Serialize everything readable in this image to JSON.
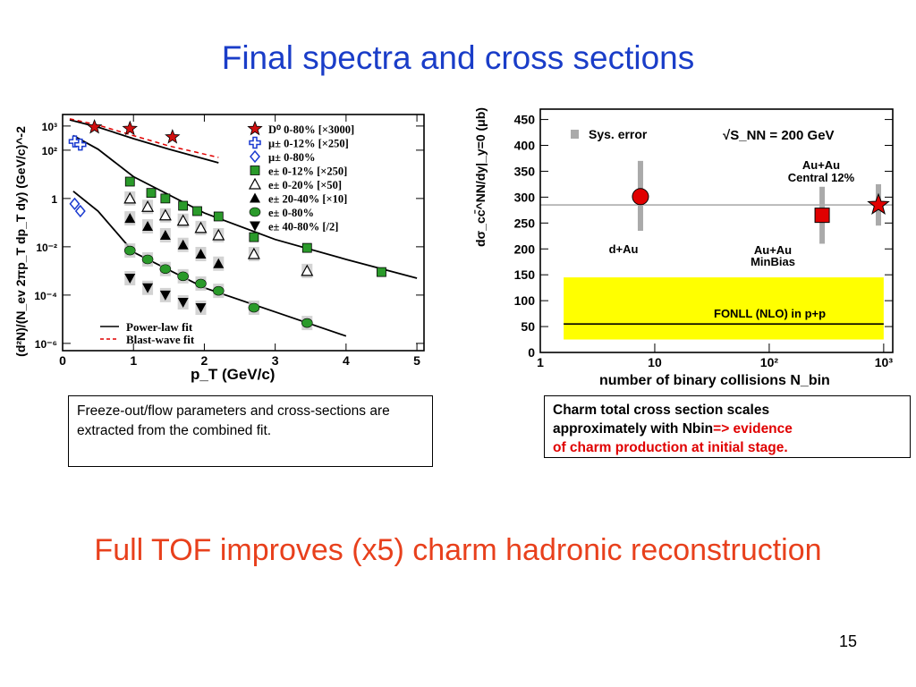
{
  "slide": {
    "title": "Final spectra and cross sections",
    "bottom_statement": "Full TOF improves (x5) charm hadronic reconstruction",
    "page_number": "15"
  },
  "left_caption": {
    "text": "Freeze-out/flow parameters and cross-sections are extracted from the combined fit."
  },
  "right_caption": {
    "line1": "Charm total cross section scales",
    "line2_black": "approximately with Nbin",
    "line2_red": "=> evidence",
    "line3_red": "of  charm production at initial stage."
  },
  "colors": {
    "title": "#1a3dc8",
    "bottom_statement": "#e8401c",
    "caption_red": "#e00000",
    "fonll_band": "#ffff00"
  },
  "chart_data": [
    {
      "type": "scatter",
      "y_scale": "log",
      "xlabel": "p_T (GeV/c)",
      "ylabel": "(d²N)/(N_ev 2πp_T dp_T dy) (GeV/c)^-2",
      "x_ticks": [
        "0",
        "1",
        "2",
        "3",
        "4",
        "5"
      ],
      "y_ticks": [
        "10³",
        "10²",
        "1",
        "10⁻²",
        "10⁻⁴",
        "10⁻⁶"
      ],
      "xlim": [
        0,
        5.1
      ],
      "ylim": [
        5e-07,
        3000
      ],
      "legend_position": "top-right",
      "legend": [
        {
          "label": "D⁰ 0-80% [×3000]",
          "marker": "star",
          "color": "#d01010"
        },
        {
          "label": "μ± 0-12% [×250]",
          "marker": "cross",
          "color": "#1a3ad0"
        },
        {
          "label": "μ± 0-80%",
          "marker": "diamond",
          "color": "#1a3ad0"
        },
        {
          "label": "e± 0-12% [×250]",
          "marker": "square",
          "color": "#2a9a2a"
        },
        {
          "label": "e± 0-20% [×50]",
          "marker": "triangle-open",
          "color": "#000000"
        },
        {
          "label": "e± 20-40% [×10]",
          "marker": "triangle",
          "color": "#000000"
        },
        {
          "label": "e± 0-80%",
          "marker": "circle",
          "color": "#2a9a2a"
        },
        {
          "label": "e± 40-80% [/2]",
          "marker": "triangle-down",
          "color": "#000000"
        }
      ],
      "fit_legend": [
        {
          "label": "Power-law fit",
          "style": "solid"
        },
        {
          "label": "Blast-wave fit",
          "style": "dashed",
          "color": "#e00000"
        }
      ],
      "series": [
        {
          "name": "D⁰ 0-80% [×3000]",
          "x": [
            0.45,
            0.95,
            1.55
          ],
          "y": [
            900,
            780,
            350
          ]
        },
        {
          "name": "μ± 0-12% [×250]",
          "x": [
            0.17,
            0.25
          ],
          "y": [
            230,
            170
          ]
        },
        {
          "name": "μ± 0-80%",
          "x": [
            0.17,
            0.25
          ],
          "y": [
            0.6,
            0.3
          ]
        },
        {
          "name": "e± 0-12% [×250]",
          "x": [
            0.95,
            1.25,
            1.45,
            1.7,
            1.9,
            2.2,
            2.7,
            3.45,
            4.5
          ],
          "y": [
            5,
            1.7,
            1.0,
            0.5,
            0.3,
            0.18,
            0.025,
            0.009,
            0.0009
          ]
        },
        {
          "name": "e± 0-20% [×50]",
          "x": [
            0.95,
            1.2,
            1.45,
            1.7,
            1.95,
            2.2,
            2.7,
            3.45
          ],
          "y": [
            1.0,
            0.45,
            0.2,
            0.12,
            0.06,
            0.03,
            0.005,
            0.001
          ]
        },
        {
          "name": "e± 20-40% [×10]",
          "x": [
            0.95,
            1.2,
            1.45,
            1.7,
            1.95,
            2.2
          ],
          "y": [
            0.15,
            0.07,
            0.03,
            0.012,
            0.005,
            0.002
          ]
        },
        {
          "name": "e± 0-80%",
          "x": [
            0.95,
            1.2,
            1.45,
            1.7,
            1.95,
            2.2,
            2.7,
            3.45
          ],
          "y": [
            0.007,
            0.003,
            0.0012,
            0.0006,
            0.0003,
            0.00015,
            3e-05,
            7e-06
          ]
        },
        {
          "name": "e± 40-80% [/2]",
          "x": [
            0.95,
            1.2,
            1.45,
            1.7,
            1.95
          ],
          "y": [
            0.0005,
            0.0002,
            0.0001,
            5e-05,
            3e-05
          ]
        }
      ],
      "fit_lines": [
        {
          "label": "Power-law fit",
          "x": [
            0.1,
            0.5,
            1.0,
            1.5,
            2.2
          ],
          "y": [
            1800,
            900,
            300,
            110,
            30
          ]
        },
        {
          "label": "Power-law fit",
          "x": [
            0.15,
            0.5,
            1.0,
            2.0,
            3.0,
            4.0,
            5.0
          ],
          "y": [
            400,
            110,
            8,
            0.25,
            0.02,
            0.003,
            0.0005
          ]
        },
        {
          "label": "Power-law fit",
          "x": [
            0.15,
            0.5,
            1.0,
            2.0,
            3.0,
            4.0
          ],
          "y": [
            2,
            0.3,
            0.006,
            0.0002,
            2e-05,
            2e-06
          ]
        },
        {
          "label": "Blast-wave fit",
          "x": [
            0.1,
            0.5,
            1.0,
            1.5,
            2.2
          ],
          "y": [
            2000,
            1100,
            400,
            150,
            50
          ]
        }
      ]
    },
    {
      "type": "scatter",
      "x_scale": "log",
      "xlabel": "number of binary collisions N_bin",
      "ylabel": "dσ_cc̄^NN/dy|_y=0 (μb)",
      "x_ticks": [
        "1",
        "10",
        "10²",
        "10³"
      ],
      "y_ticks": [
        "0",
        "50",
        "100",
        "150",
        "200",
        "250",
        "300",
        "350",
        "400",
        "450"
      ],
      "xlim": [
        1,
        1200
      ],
      "ylim": [
        0,
        470
      ],
      "annotations": [
        "Sys. error",
        "√S_NN = 200 GeV",
        "Au+Au\nCentral 12%",
        "d+Au",
        "Au+Au\nMinBias",
        "FONLL (NLO) in p+p"
      ],
      "reference_line": {
        "y": 285
      },
      "fonll_band": {
        "x": [
          1.6,
          1000
        ],
        "y_range": [
          25,
          145
        ],
        "central": 55
      },
      "series": [
        {
          "name": "d+Au",
          "marker": "circle",
          "color": "#e00000",
          "x": [
            7.5
          ],
          "y": [
            301
          ],
          "sys_error": [
            235,
            370
          ]
        },
        {
          "name": "Au+Au MinBias",
          "marker": "square",
          "color": "#e00000",
          "x": [
            290
          ],
          "y": [
            265
          ],
          "sys_error": [
            210,
            320
          ]
        },
        {
          "name": "Au+Au Central 12%",
          "marker": "star",
          "color": "#e00000",
          "x": [
            900
          ],
          "y": [
            285
          ],
          "sys_error": [
            245,
            325
          ]
        }
      ]
    }
  ]
}
